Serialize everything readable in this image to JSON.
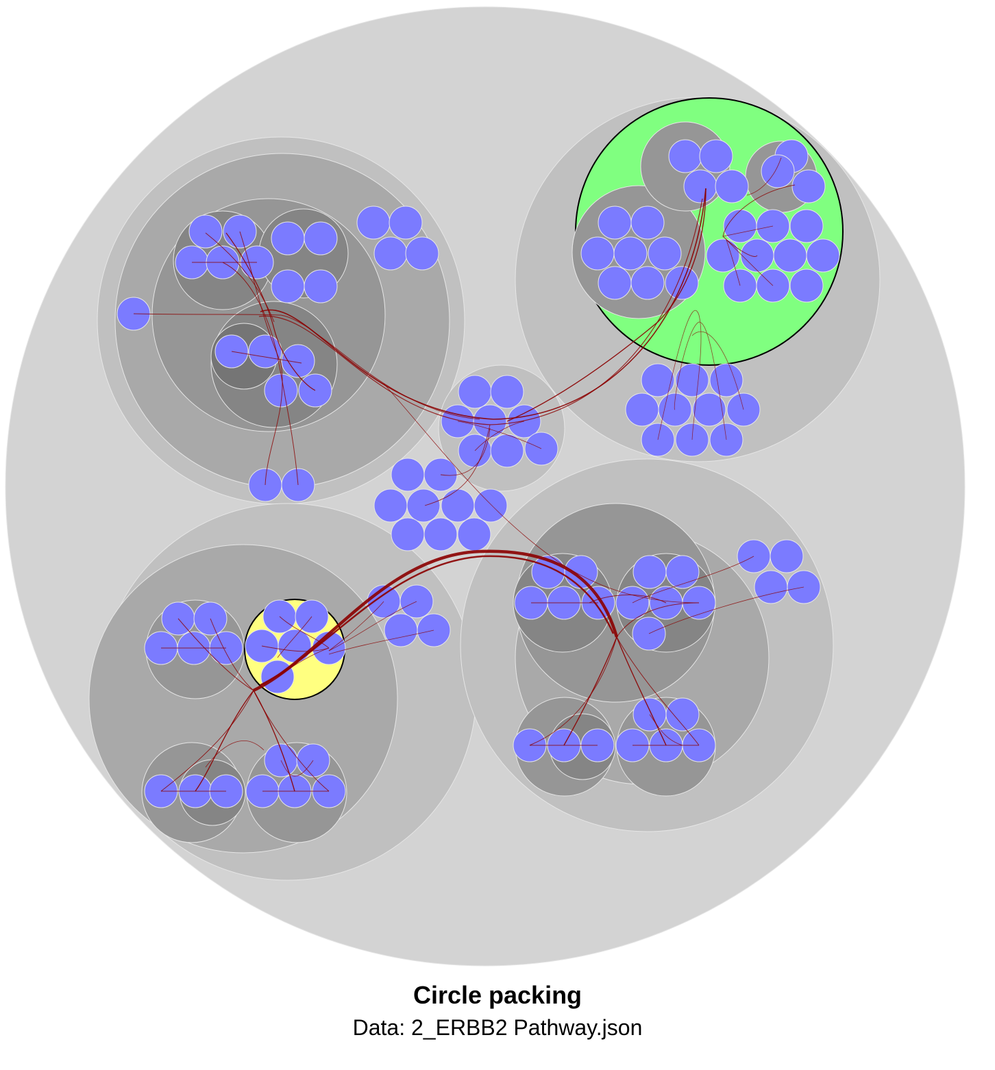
{
  "figure": {
    "title": "Circle packing",
    "subtitle": "Data: 2_ERBB2 Pathway.json"
  },
  "colors": {
    "background": "#ffffff",
    "leaf": "#7b7bff",
    "edge": "#8b0000",
    "group_highlight_green": "#80ff80",
    "group_highlight_yellow": "#ffff80",
    "depth_shades": [
      "#d3d3d3",
      "#c0c0c0",
      "#a9a9a9",
      "#969696",
      "#858585",
      "#757575",
      "#686868"
    ]
  },
  "icons": {
    "leaf": "filled-circle",
    "group": "shaded-circle"
  }
}
